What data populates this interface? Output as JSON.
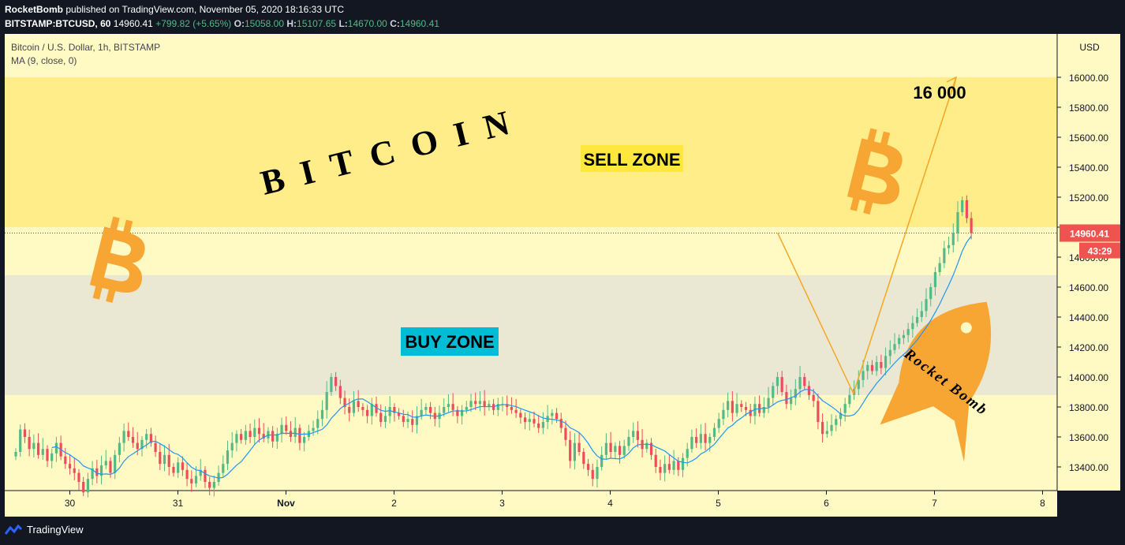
{
  "header": {
    "author": "RocketBomb",
    "published": "published on TradingView.com, November 05, 2020 18:16:33 UTC",
    "symbol": "BITSTAMP:BTCUSD, 60",
    "last": "14960.41",
    "change": "+799.82 (+5.65%)",
    "o_label": "O:",
    "o": "15058.00",
    "h_label": "H:",
    "h": "15107.65",
    "l_label": "L:",
    "l": "14670.00",
    "c_label": "C:",
    "c": "14960.41"
  },
  "legend": {
    "title": "Bitcoin / U.S. Dollar, 1h, BITSTAMP",
    "indicator": "MA (9, close, 0)"
  },
  "currency": "USD",
  "price_badge": "14960.41",
  "countdown_badge": "43:29",
  "footer": {
    "brand": "TradingView"
  },
  "annotations": {
    "bitcoin": "BITCOIN",
    "sell_zone": "SELL ZONE",
    "buy_zone": "BUY ZONE",
    "target": "16 000",
    "rocket": "Rocket Bomb"
  },
  "colors": {
    "background": "#131722",
    "chart_bg": "#fff9c4",
    "sell_zone": "#ffed8a",
    "buy_zone": "#eae8d3",
    "up": "#53b987",
    "down": "#eb4d5c",
    "ma": "#2196f3",
    "projection": "#f5a623",
    "bitcoin_logo": "#f7a533",
    "sell_label_bg": "#ffe83d",
    "buy_label_bg": "#00bcd4",
    "price_badge": "#ef5350"
  },
  "chart_data": {
    "type": "candlestick",
    "title": "Bitcoin / U.S. Dollar, 1h, BITSTAMP",
    "x_ticks": [
      "30",
      "31",
      "Nov",
      "2",
      "3",
      "4",
      "5",
      "6",
      "7",
      "8"
    ],
    "y_ticks": [
      13400,
      13600,
      13800,
      14000,
      14200,
      14400,
      14600,
      14800,
      15000,
      15200,
      15400,
      15600,
      15800,
      16000
    ],
    "ylim": [
      13280,
      16280
    ],
    "xlim": [
      0,
      9.9
    ],
    "zones": {
      "sell": [
        15000,
        16000
      ],
      "buy": [
        13880,
        14680
      ]
    },
    "last_price": 14960.41,
    "projection": {
      "points": [
        [
          7.05,
          14960
        ],
        [
          7.75,
          13890
        ],
        [
          8.7,
          16000
        ]
      ],
      "target_label": "16 000"
    },
    "candles_start": 0.0,
    "candles_step": 0.0417,
    "close": [
      13500,
      13650,
      13600,
      13520,
      13560,
      13480,
      13520,
      13440,
      13490,
      13560,
      13470,
      13420,
      13390,
      13360,
      13300,
      13230,
      13320,
      13390,
      13340,
      13410,
      13440,
      13360,
      13480,
      13560,
      13640,
      13600,
      13560,
      13520,
      13580,
      13620,
      13560,
      13500,
      13420,
      13480,
      13400,
      13360,
      13430,
      13380,
      13320,
      13290,
      13340,
      13380,
      13300,
      13260,
      13300,
      13360,
      13420,
      13510,
      13560,
      13620,
      13580,
      13640,
      13600,
      13660,
      13620,
      13590,
      13640,
      13570,
      13620,
      13680,
      13640,
      13600,
      13660,
      13560,
      13600,
      13640,
      13660,
      13720,
      13780,
      13900,
      14000,
      13940,
      13860,
      13800,
      13760,
      13840,
      13800,
      13780,
      13740,
      13820,
      13760,
      13700,
      13740,
      13800,
      13760,
      13740,
      13700,
      13720,
      13680,
      13740,
      13780,
      13800,
      13760,
      13720,
      13760,
      13800,
      13820,
      13780,
      13740,
      13780,
      13800,
      13840,
      13820,
      13840,
      13800,
      13820,
      13780,
      13820,
      13820,
      13800,
      13780,
      13760,
      13730,
      13700,
      13720,
      13690,
      13660,
      13700,
      13740,
      13760,
      13720,
      13660,
      13580,
      13440,
      13560,
      13500,
      13420,
      13380,
      13320,
      13400,
      13480,
      13560,
      13500,
      13540,
      13480,
      13540,
      13600,
      13640,
      13580,
      13520,
      13560,
      13480,
      13400,
      13360,
      13420,
      13380,
      13440,
      13380,
      13460,
      13520,
      13600,
      13560,
      13620,
      13560,
      13600,
      13660,
      13720,
      13780,
      13840,
      13760,
      13820,
      13800,
      13780,
      13740,
      13820,
      13760,
      13800,
      13860,
      13940,
      14000,
      13900,
      13820,
      13860,
      13920,
      14000,
      13940,
      13880,
      13840,
      13700,
      13620,
      13640,
      13680,
      13720,
      13760,
      13820,
      13880,
      13920,
      13980,
      14040,
      14080,
      14040,
      14100,
      14060,
      14140,
      14180,
      14220,
      14260,
      14280,
      14320,
      14360,
      14400,
      14440,
      14520,
      14600,
      14700,
      14760,
      14860,
      14880,
      14960,
      15100,
      15180,
      15060,
      14960
    ]
  }
}
